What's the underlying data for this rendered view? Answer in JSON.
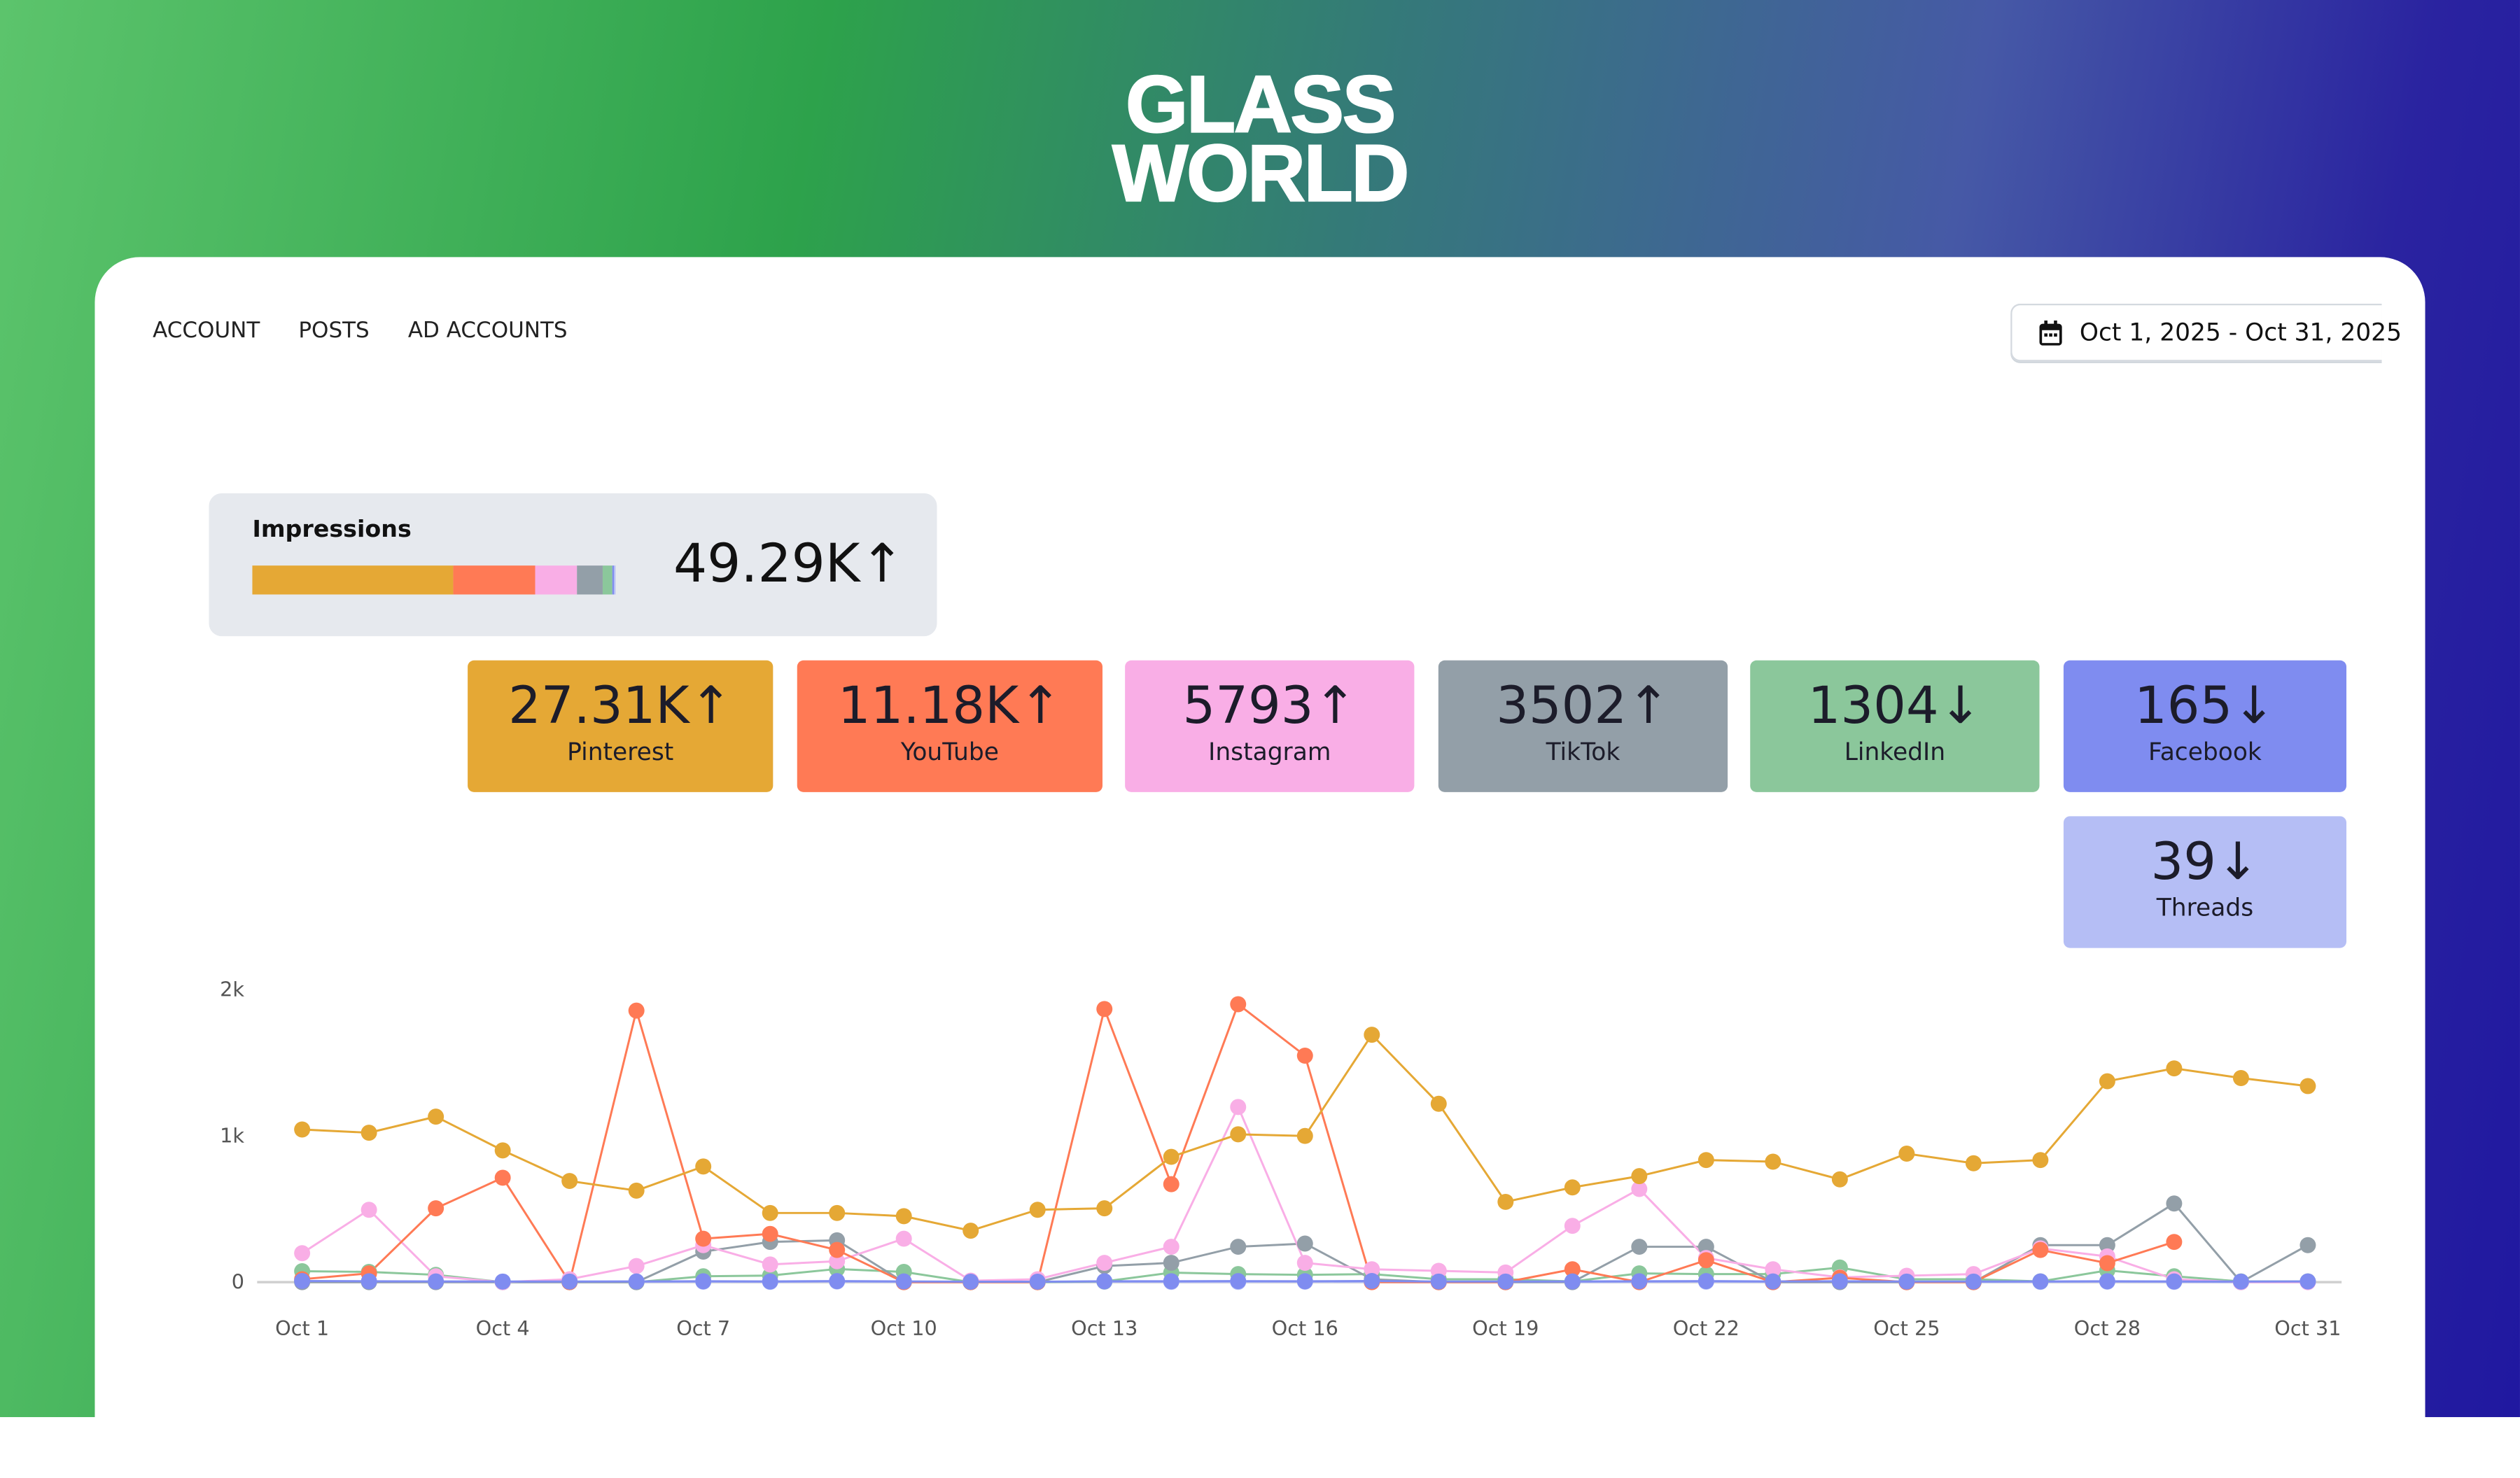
{
  "brand": {
    "logo_line1": "GLASS",
    "logo_line2": "WORLD"
  },
  "nav": {
    "items": [
      "ACCOUNT",
      "POSTS",
      "AD ACCOUNTS"
    ]
  },
  "date_range": {
    "icon": "calendar-icon",
    "label": "Oct 1, 2025 - Oct 31, 2025"
  },
  "impressions": {
    "label": "Impressions",
    "value": "49.29K",
    "trend": "↑",
    "breakdown": [
      {
        "name": "Pinterest",
        "share": 55.4,
        "color": "#E5A835"
      },
      {
        "name": "YouTube",
        "share": 22.7,
        "color": "#FF7A55"
      },
      {
        "name": "Instagram",
        "share": 11.75,
        "color": "#F9AEE6"
      },
      {
        "name": "TikTok",
        "share": 7.1,
        "color": "#939FA8"
      },
      {
        "name": "LinkedIn",
        "share": 2.65,
        "color": "#8BC79B"
      },
      {
        "name": "Facebook",
        "share": 0.33,
        "color": "#7F8CF0"
      },
      {
        "name": "Threads",
        "share": 0.08,
        "color": "#B5BEF5"
      }
    ]
  },
  "platforms": [
    {
      "name": "Pinterest",
      "value": "27.31K",
      "trend": "↑",
      "color": "#E5A835"
    },
    {
      "name": "YouTube",
      "value": "11.18K",
      "trend": "↑",
      "color": "#FF7A55"
    },
    {
      "name": "Instagram",
      "value": "5793",
      "trend": "↑",
      "color": "#F9AEE6"
    },
    {
      "name": "TikTok",
      "value": "3502",
      "trend": "↑",
      "color": "#939FA8"
    },
    {
      "name": "LinkedIn",
      "value": "1304",
      "trend": "↓",
      "color": "#8BC79B"
    },
    {
      "name": "Facebook",
      "value": "165",
      "trend": "↓",
      "color": "#7F8CF0"
    },
    {
      "name": "Threads",
      "value": "39",
      "trend": "↓",
      "color": "#B5BEF5"
    }
  ],
  "chart_data": {
    "type": "line",
    "title": "",
    "xlabel": "",
    "ylabel": "",
    "ylim": [
      0,
      2000
    ],
    "yticks": [
      {
        "v": 0,
        "label": "0"
      },
      {
        "v": 1000,
        "label": "1k"
      },
      {
        "v": 2000,
        "label": "2k"
      }
    ],
    "x": [
      "Oct 1",
      "Oct 2",
      "Oct 3",
      "Oct 4",
      "Oct 5",
      "Oct 6",
      "Oct 7",
      "Oct 8",
      "Oct 9",
      "Oct 10",
      "Oct 11",
      "Oct 12",
      "Oct 13",
      "Oct 14",
      "Oct 15",
      "Oct 16",
      "Oct 17",
      "Oct 18",
      "Oct 19",
      "Oct 20",
      "Oct 21",
      "Oct 22",
      "Oct 23",
      "Oct 24",
      "Oct 25",
      "Oct 26",
      "Oct 27",
      "Oct 28",
      "Oct 29",
      "Oct 30",
      "Oct 31"
    ],
    "xtick_labels": [
      "Oct 1",
      "Oct 4",
      "Oct 7",
      "Oct 10",
      "Oct 13",
      "Oct 16",
      "Oct 19",
      "Oct 22",
      "Oct 25",
      "Oct 28",
      "Oct 31"
    ],
    "grid": false,
    "legend": "none",
    "series": [
      {
        "name": "Threads",
        "color": "#B5BEF5",
        "values": [
          3,
          2,
          2,
          0,
          0,
          2,
          3,
          2,
          4,
          2,
          0,
          0,
          3,
          2,
          2,
          3,
          2,
          0,
          0,
          1,
          2,
          3,
          2,
          3,
          1,
          1,
          2,
          3,
          2,
          0,
          1
        ]
      },
      {
        "name": "LinkedIn",
        "color": "#8BC79B",
        "values": [
          75,
          70,
          50,
          0,
          0,
          0,
          40,
          45,
          90,
          70,
          0,
          0,
          5,
          65,
          55,
          50,
          55,
          20,
          20,
          5,
          60,
          55,
          55,
          100,
          20,
          20,
          5,
          80,
          40,
          5,
          5
        ]
      },
      {
        "name": "TikTok",
        "color": "#939FA8",
        "values": [
          0,
          0,
          0,
          0,
          0,
          0,
          209,
          275,
          286,
          0,
          0,
          0,
          110,
          132,
          242,
          264,
          20,
          0,
          0,
          0,
          242,
          242,
          0,
          0,
          0,
          0,
          253,
          253,
          538,
          0,
          253
        ]
      },
      {
        "name": "Instagram",
        "color": "#F9AEE6",
        "values": [
          198,
          495,
          40,
          0,
          20,
          110,
          253,
          121,
          143,
          297,
          10,
          20,
          132,
          242,
          1198,
          132,
          88,
          77,
          66,
          385,
          637,
          165,
          88,
          33,
          44,
          55,
          231,
          176,
          20,
          0,
          0
        ]
      },
      {
        "name": "YouTube",
        "color": "#FF7A55",
        "values": [
          20,
          60,
          505,
          714,
          0,
          1857,
          297,
          330,
          220,
          0,
          0,
          0,
          1868,
          670,
          1901,
          1549,
          0,
          0,
          0,
          88,
          0,
          150,
          0,
          30,
          0,
          0,
          220,
          130,
          275,
          null,
          null
        ]
      },
      {
        "name": "Pinterest",
        "color": "#E5A835",
        "values": [
          1044,
          1022,
          1132,
          901,
          692,
          626,
          791,
          473,
          473,
          451,
          352,
          495,
          505,
          857,
          1011,
          1000,
          1692,
          1220,
          549,
          648,
          725,
          835,
          824,
          703,
          879,
          813,
          835,
          1374,
          1462,
          1396,
          1341
        ]
      },
      {
        "name": "Facebook",
        "color": "#7F8CF0",
        "values": [
          8,
          6,
          5,
          4,
          4,
          5,
          6,
          5,
          7,
          5,
          3,
          3,
          6,
          6,
          7,
          6,
          8,
          4,
          4,
          5,
          6,
          7,
          5,
          6,
          4,
          4,
          5,
          6,
          5,
          4,
          5
        ]
      }
    ]
  }
}
